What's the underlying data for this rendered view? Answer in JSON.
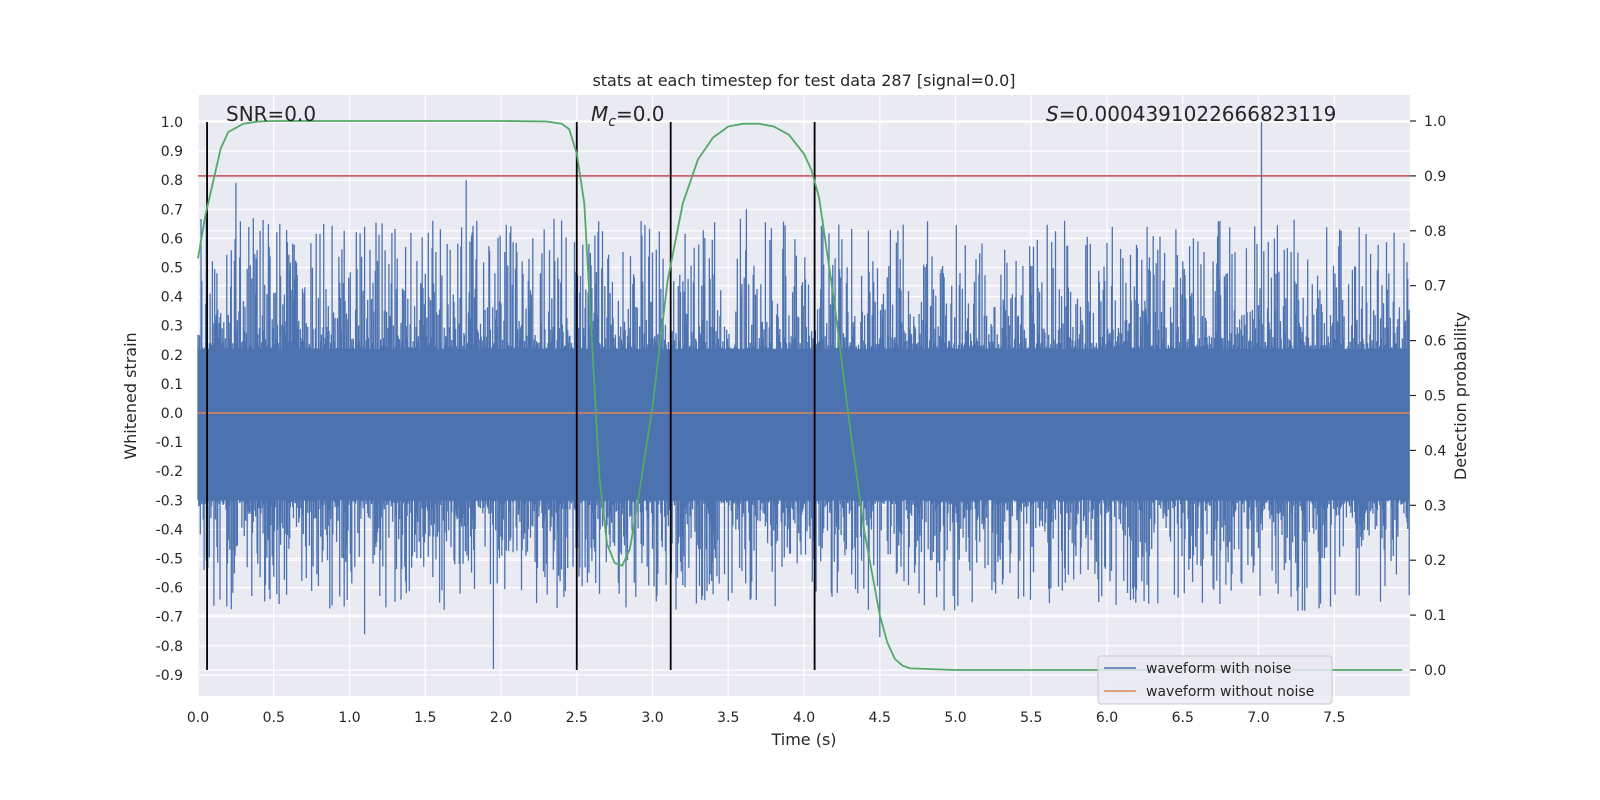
{
  "chart_data": {
    "type": "line",
    "title": "stats at each timestep for test data 287 [signal=0.0]",
    "xlabel": "Time (s)",
    "ylabel_left": "Whitened strain",
    "ylabel_right": "Detection probability",
    "xlim": [
      0.0,
      8.0
    ],
    "ylim_left": [
      -1.0,
      1.08
    ],
    "ylim_right": [
      -0.05,
      1.04
    ],
    "grid": true,
    "x_ticks": [
      "0.0",
      "0.5",
      "1.0",
      "1.5",
      "2.0",
      "2.5",
      "3.0",
      "3.5",
      "4.0",
      "4.5",
      "5.0",
      "5.5",
      "6.0",
      "6.5",
      "7.0",
      "7.5"
    ],
    "y_ticks_left": [
      "1.0",
      "0.9",
      "0.8",
      "0.7",
      "0.6",
      "0.5",
      "0.4",
      "0.3",
      "0.2",
      "0.1",
      "0.0",
      "-0.1",
      "-0.2",
      "-0.3",
      "-0.4",
      "-0.5",
      "-0.6",
      "-0.7",
      "-0.8",
      "-0.9"
    ],
    "y_ticks_right": [
      "1.0",
      "0.9",
      "0.8",
      "0.7",
      "0.6",
      "0.5",
      "0.4",
      "0.3",
      "0.2",
      "0.1",
      "0.0"
    ],
    "annotations": {
      "snr": "SNR=0.0",
      "mc_symbol": "M",
      "mc_subscript": "c",
      "mc_value": "=0.0",
      "s_symbol": "S",
      "s_value": "=0.0004391022666823119"
    },
    "legend": {
      "placement": "lower-right",
      "entries": [
        "waveform with noise",
        "waveform without noise"
      ]
    },
    "colors": {
      "noise": "#4c72b0",
      "clean": "#dd8452",
      "probability": "#55a868",
      "threshold": "#c44e52",
      "markers": "#000000",
      "background": "#eaeaf2",
      "grid": "#ffffff"
    },
    "series": [
      {
        "name": "waveform with noise",
        "axis": "left",
        "description_range": [
          -0.88,
          1.0
        ],
        "spikes": [
          [
            0.06,
            -0.75
          ],
          [
            0.25,
            0.79
          ],
          [
            1.1,
            -0.76
          ],
          [
            1.77,
            0.8
          ],
          [
            1.95,
            -0.88
          ],
          [
            2.93,
            0.61
          ],
          [
            3.62,
            0.7
          ],
          [
            4.5,
            -0.77
          ],
          [
            7.02,
            1.0
          ],
          [
            7.26,
            -0.68
          ]
        ]
      },
      {
        "name": "waveform without noise",
        "axis": "left",
        "x": [
          0.0,
          8.0
        ],
        "y": [
          0.0,
          0.0
        ]
      },
      {
        "axis": "right",
        "x": [
          0.0,
          0.05,
          0.1,
          0.15,
          0.2,
          0.3,
          0.4,
          0.5,
          1.0,
          1.5,
          2.0,
          2.3,
          2.4,
          2.45,
          2.5,
          2.55,
          2.6,
          2.65,
          2.7,
          2.75,
          2.8,
          2.85,
          2.9,
          3.0,
          3.1,
          3.2,
          3.3,
          3.4,
          3.5,
          3.6,
          3.7,
          3.8,
          3.9,
          4.0,
          4.05,
          4.1,
          4.2,
          4.3,
          4.4,
          4.5,
          4.55,
          4.6,
          4.65,
          4.7,
          5.0,
          6.0,
          7.0,
          7.95
        ],
        "y": [
          0.75,
          0.83,
          0.89,
          0.95,
          0.98,
          0.995,
          0.999,
          1.0,
          1.0,
          1.0,
          1.0,
          0.999,
          0.995,
          0.985,
          0.94,
          0.85,
          0.6,
          0.35,
          0.23,
          0.195,
          0.19,
          0.22,
          0.3,
          0.48,
          0.71,
          0.85,
          0.93,
          0.97,
          0.99,
          0.995,
          0.995,
          0.99,
          0.975,
          0.94,
          0.91,
          0.86,
          0.67,
          0.45,
          0.25,
          0.1,
          0.05,
          0.02,
          0.008,
          0.003,
          0.0,
          0.0,
          0.0,
          0.0
        ]
      },
      {
        "axis": "right",
        "x": [
          0.0,
          8.0
        ],
        "y": [
          0.9,
          0.9
        ]
      }
    ],
    "vertical_markers_x": [
      0.06,
      2.5,
      3.12,
      4.07
    ]
  }
}
